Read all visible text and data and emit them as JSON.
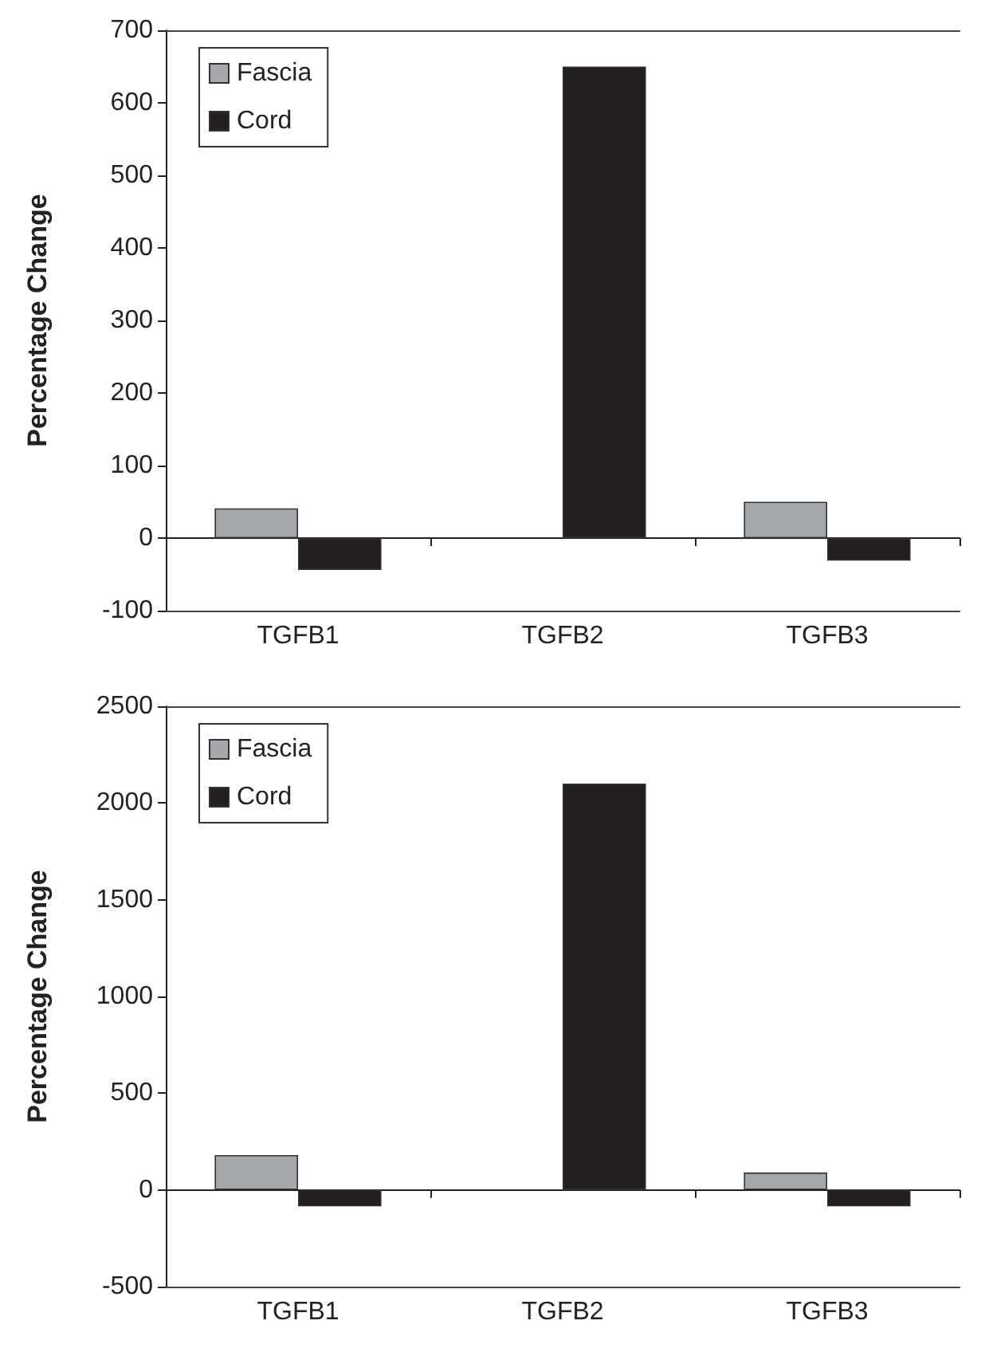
{
  "chart_data": [
    {
      "type": "bar",
      "ylabel": "Percentage Change",
      "categories": [
        "TGFB1",
        "TGFB2",
        "TGFB3"
      ],
      "series": [
        {
          "name": "Fascia",
          "color": "#a7a8ab",
          "values": [
            41,
            0,
            50
          ]
        },
        {
          "name": "Cord",
          "color": "#231f20",
          "values": [
            -44,
            650,
            -31
          ]
        }
      ],
      "ylim": [
        -100,
        700
      ],
      "yticks": [
        -100,
        0,
        100,
        200,
        300,
        400,
        500,
        600,
        700
      ],
      "legend": "top left"
    },
    {
      "type": "bar",
      "ylabel": "Percentage Change",
      "categories": [
        "TGFB1",
        "TGFB2",
        "TGFB3"
      ],
      "series": [
        {
          "name": "Fascia",
          "color": "#a7a8ab",
          "values": [
            180,
            0,
            90
          ]
        },
        {
          "name": "Cord",
          "color": "#231f20",
          "values": [
            -85,
            2100,
            -85
          ]
        }
      ],
      "ylim": [
        -500,
        2500
      ],
      "yticks": [
        -500,
        0,
        500,
        1000,
        1500,
        2000,
        2500
      ],
      "legend": "top left"
    }
  ]
}
